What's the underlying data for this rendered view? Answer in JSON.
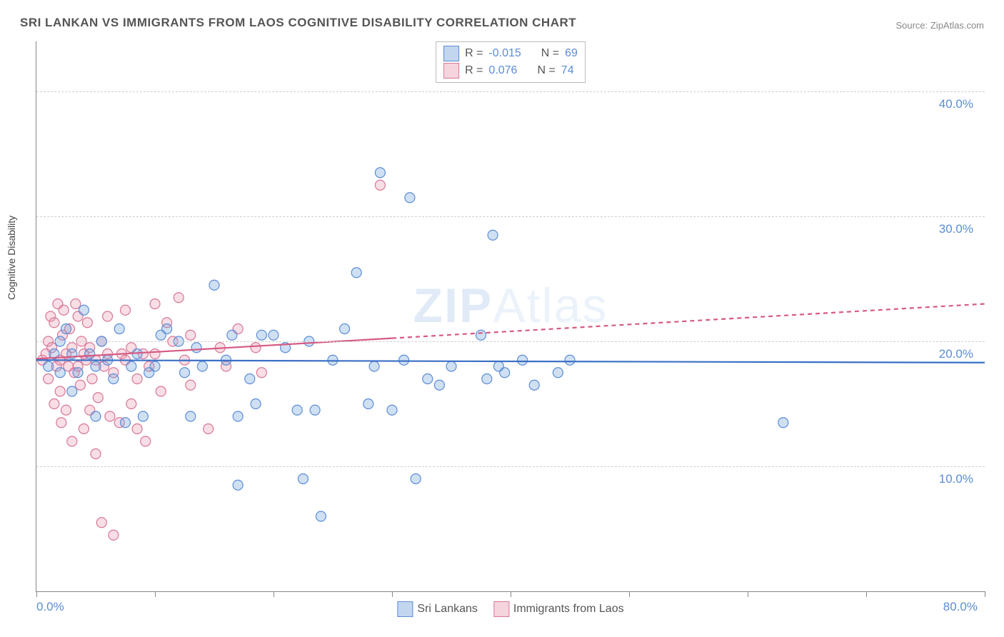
{
  "title": "SRI LANKAN VS IMMIGRANTS FROM LAOS COGNITIVE DISABILITY CORRELATION CHART",
  "source": "Source: ZipAtlas.com",
  "watermark": {
    "bold": "ZIP",
    "light": "Atlas"
  },
  "ylabel": "Cognitive Disability",
  "chart": {
    "type": "scatter",
    "xlim": [
      0,
      80
    ],
    "ylim": [
      0,
      44
    ],
    "yticks": [
      10,
      20,
      30,
      40
    ],
    "ytick_labels": [
      "10.0%",
      "20.0%",
      "30.0%",
      "40.0%"
    ],
    "xticks": [
      0,
      10,
      20,
      30,
      40,
      50,
      60,
      70,
      80
    ],
    "xtick_labels": {
      "min": "0.0%",
      "max": "80.0%"
    },
    "background_color": "#ffffff",
    "grid_color": "#d0d0d0",
    "axis_color": "#888888",
    "ytick_label_color": "#5b8dd6",
    "marker_radius": 7,
    "marker_stroke_width": 1.2,
    "series": {
      "blue": {
        "label": "Sri Lankans",
        "fill": "rgba(120,165,220,0.35)",
        "stroke": "#5b8dd6",
        "R": "-0.015",
        "N": "69",
        "trend_color": "#3a6fc5",
        "trend": {
          "y0": 18.5,
          "y1": 18.3,
          "x0": 0,
          "x1": 80
        },
        "points": [
          [
            1,
            18
          ],
          [
            1.5,
            19
          ],
          [
            2,
            17.5
          ],
          [
            2,
            20
          ],
          [
            2.5,
            21
          ],
          [
            3,
            19
          ],
          [
            3,
            16
          ],
          [
            3.5,
            17.5
          ],
          [
            4,
            22.5
          ],
          [
            4.5,
            19
          ],
          [
            5,
            18
          ],
          [
            5,
            14
          ],
          [
            5.5,
            20
          ],
          [
            6,
            18.5
          ],
          [
            6.5,
            17
          ],
          [
            7,
            21
          ],
          [
            7.5,
            13.5
          ],
          [
            8,
            18
          ],
          [
            8.5,
            19
          ],
          [
            9,
            14
          ],
          [
            9.5,
            17.5
          ],
          [
            10,
            18
          ],
          [
            10.5,
            20.5
          ],
          [
            11,
            21
          ],
          [
            12,
            20
          ],
          [
            12.5,
            17.5
          ],
          [
            13,
            14
          ],
          [
            13.5,
            19.5
          ],
          [
            14,
            18
          ],
          [
            15,
            24.5
          ],
          [
            16,
            18.5
          ],
          [
            16.5,
            20.5
          ],
          [
            17,
            8.5
          ],
          [
            17,
            14
          ],
          [
            18,
            17
          ],
          [
            18.5,
            15
          ],
          [
            19,
            20.5
          ],
          [
            20,
            20.5
          ],
          [
            21,
            19.5
          ],
          [
            22,
            14.5
          ],
          [
            22.5,
            9
          ],
          [
            23,
            20
          ],
          [
            23.5,
            14.5
          ],
          [
            24,
            6
          ],
          [
            25,
            18.5
          ],
          [
            26,
            21
          ],
          [
            27,
            25.5
          ],
          [
            28,
            15
          ],
          [
            28.5,
            18
          ],
          [
            29,
            33.5
          ],
          [
            30,
            14.5
          ],
          [
            31,
            18.5
          ],
          [
            31.5,
            31.5
          ],
          [
            32,
            9
          ],
          [
            33,
            17
          ],
          [
            34,
            16.5
          ],
          [
            35,
            18
          ],
          [
            37.5,
            20.5
          ],
          [
            38,
            17
          ],
          [
            38.5,
            28.5
          ],
          [
            39,
            18
          ],
          [
            39.5,
            17.5
          ],
          [
            41,
            18.5
          ],
          [
            42,
            16.5
          ],
          [
            44,
            17.5
          ],
          [
            45,
            18.5
          ],
          [
            63,
            13.5
          ]
        ]
      },
      "pink": {
        "label": "Immigrants from Laos",
        "fill": "rgba(235,160,180,0.35)",
        "stroke": "#d87797",
        "R": "0.076",
        "N": "74",
        "trend_color": "#d65a84",
        "trend": {
          "y0": 18.6,
          "y1": 23.0,
          "x0": 0,
          "x1": 80,
          "solid_until": 30
        },
        "points": [
          [
            0.5,
            18.5
          ],
          [
            0.8,
            19
          ],
          [
            1,
            17
          ],
          [
            1,
            20
          ],
          [
            1.2,
            22
          ],
          [
            1.3,
            19.5
          ],
          [
            1.5,
            21.5
          ],
          [
            1.5,
            15
          ],
          [
            1.7,
            18
          ],
          [
            1.8,
            23
          ],
          [
            2,
            18.5
          ],
          [
            2,
            16
          ],
          [
            2.1,
            13.5
          ],
          [
            2.2,
            20.5
          ],
          [
            2.3,
            22.5
          ],
          [
            2.5,
            19
          ],
          [
            2.5,
            14.5
          ],
          [
            2.7,
            18
          ],
          [
            2.8,
            21
          ],
          [
            3,
            19.5
          ],
          [
            3,
            12
          ],
          [
            3.2,
            17.5
          ],
          [
            3.3,
            23
          ],
          [
            3.5,
            22
          ],
          [
            3.5,
            18
          ],
          [
            3.7,
            16.5
          ],
          [
            3.8,
            20
          ],
          [
            4,
            19
          ],
          [
            4,
            13
          ],
          [
            4.2,
            18.5
          ],
          [
            4.3,
            21.5
          ],
          [
            4.5,
            14.5
          ],
          [
            4.5,
            19.5
          ],
          [
            4.7,
            17
          ],
          [
            5,
            18.5
          ],
          [
            5,
            11
          ],
          [
            5.2,
            15.5
          ],
          [
            5.5,
            20
          ],
          [
            5.5,
            5.5
          ],
          [
            5.7,
            18
          ],
          [
            6,
            22
          ],
          [
            6,
            19
          ],
          [
            6.2,
            14
          ],
          [
            6.5,
            17.5
          ],
          [
            6.5,
            4.5
          ],
          [
            7,
            13.5
          ],
          [
            7.2,
            19
          ],
          [
            7.5,
            22.5
          ],
          [
            7.5,
            18.5
          ],
          [
            8,
            19.5
          ],
          [
            8,
            15
          ],
          [
            8.5,
            13
          ],
          [
            8.5,
            17
          ],
          [
            9,
            19
          ],
          [
            9.2,
            12
          ],
          [
            9.5,
            18
          ],
          [
            10,
            23
          ],
          [
            10,
            19
          ],
          [
            10.5,
            16
          ],
          [
            11,
            21.5
          ],
          [
            11.5,
            20
          ],
          [
            12,
            23.5
          ],
          [
            12.5,
            18.5
          ],
          [
            13,
            16.5
          ],
          [
            13,
            20.5
          ],
          [
            14.5,
            13
          ],
          [
            15.5,
            19.5
          ],
          [
            16,
            18
          ],
          [
            17,
            21
          ],
          [
            18.5,
            19.5
          ],
          [
            19,
            17.5
          ],
          [
            29,
            32.5
          ]
        ]
      }
    }
  },
  "legend_top": {
    "rows": [
      {
        "swatch": "blue",
        "r_label": "R =",
        "r_val": "-0.015",
        "n_label": "N =",
        "n_val": "69"
      },
      {
        "swatch": "pink",
        "r_label": "R =",
        "r_val": "0.076",
        "n_label": "N =",
        "n_val": "74"
      }
    ]
  },
  "legend_bottom": [
    {
      "swatch": "blue",
      "label": "Sri Lankans"
    },
    {
      "swatch": "pink",
      "label": "Immigrants from Laos"
    }
  ]
}
